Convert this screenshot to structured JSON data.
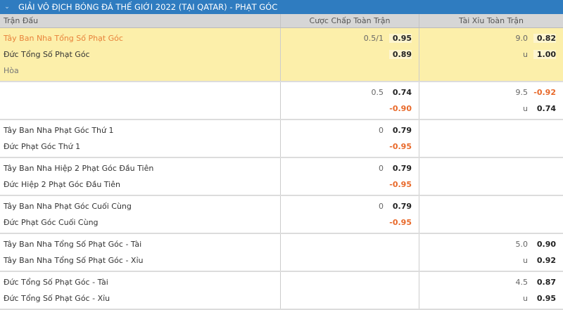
{
  "header": {
    "title": "GIẢI VÔ ĐỊCH BÓNG ĐÁ THẾ GIỚI 2022 (TẠI QATAR) - PHẠT GÓC",
    "collapse_icon": "chevron-down-icon"
  },
  "columns": {
    "match": "Trận Đấu",
    "handicap": "Cược Chấp Toàn Trận",
    "over_under": "Tài Xỉu Toàn Trận"
  },
  "colors": {
    "header": "#2f7cc0",
    "highlight": "#fcefaa",
    "negative": "#e8692a",
    "favorite": "#e8823a"
  },
  "rows": [
    {
      "highlight": true,
      "names": [
        "Tây Ban Nha Tổng Số Phạt Góc",
        "Đức Tổng Số Phạt Góc",
        "Hòa"
      ],
      "hdp": [
        {
          "line": "0.5/1",
          "odds": "0.95"
        },
        {
          "line": "",
          "odds": "0.89"
        },
        {
          "line": "",
          "odds": ""
        }
      ],
      "ou": [
        {
          "line": "9.0",
          "odds": "0.82"
        },
        {
          "line": "u",
          "odds": "1.00"
        },
        {
          "line": "",
          "odds": ""
        }
      ]
    },
    {
      "names": [
        "",
        ""
      ],
      "hdp": [
        {
          "line": "0.5",
          "odds": "0.74"
        },
        {
          "line": "",
          "odds": "-0.90"
        }
      ],
      "ou": [
        {
          "line": "9.5",
          "odds": "-0.92"
        },
        {
          "line": "u",
          "odds": "0.74"
        }
      ]
    },
    {
      "names": [
        "Tây Ban Nha Phạt Góc Thứ 1",
        "Đức Phạt Góc Thứ 1"
      ],
      "hdp": [
        {
          "line": "0",
          "odds": "0.79"
        },
        {
          "line": "",
          "odds": "-0.95"
        }
      ],
      "ou": [
        {
          "line": "",
          "odds": ""
        },
        {
          "line": "",
          "odds": ""
        }
      ]
    },
    {
      "names": [
        "Tây Ban Nha Hiệp 2 Phạt Góc Đầu Tiên",
        "Đức Hiệp 2 Phạt Góc Đầu Tiên"
      ],
      "hdp": [
        {
          "line": "0",
          "odds": "0.79"
        },
        {
          "line": "",
          "odds": "-0.95"
        }
      ],
      "ou": [
        {
          "line": "",
          "odds": ""
        },
        {
          "line": "",
          "odds": ""
        }
      ]
    },
    {
      "names": [
        "Tây Ban Nha Phạt Góc Cuối Cùng",
        "Đức Phạt Góc Cuối Cùng"
      ],
      "hdp": [
        {
          "line": "0",
          "odds": "0.79"
        },
        {
          "line": "",
          "odds": "-0.95"
        }
      ],
      "ou": [
        {
          "line": "",
          "odds": ""
        },
        {
          "line": "",
          "odds": ""
        }
      ]
    },
    {
      "names": [
        "Tây Ban Nha Tổng Số Phạt Góc - Tài",
        "Tây Ban Nha Tổng Số Phạt Góc - Xỉu"
      ],
      "hdp": [
        {
          "line": "",
          "odds": ""
        },
        {
          "line": "",
          "odds": ""
        }
      ],
      "ou": [
        {
          "line": "5.0",
          "odds": "0.90"
        },
        {
          "line": "u",
          "odds": "0.92"
        }
      ]
    },
    {
      "names": [
        "Đức Tổng Số Phạt Góc - Tài",
        "Đức Tổng Số Phạt Góc - Xỉu"
      ],
      "hdp": [
        {
          "line": "",
          "odds": ""
        },
        {
          "line": "",
          "odds": ""
        }
      ],
      "ou": [
        {
          "line": "4.5",
          "odds": "0.87"
        },
        {
          "line": "u",
          "odds": "0.95"
        }
      ]
    }
  ]
}
